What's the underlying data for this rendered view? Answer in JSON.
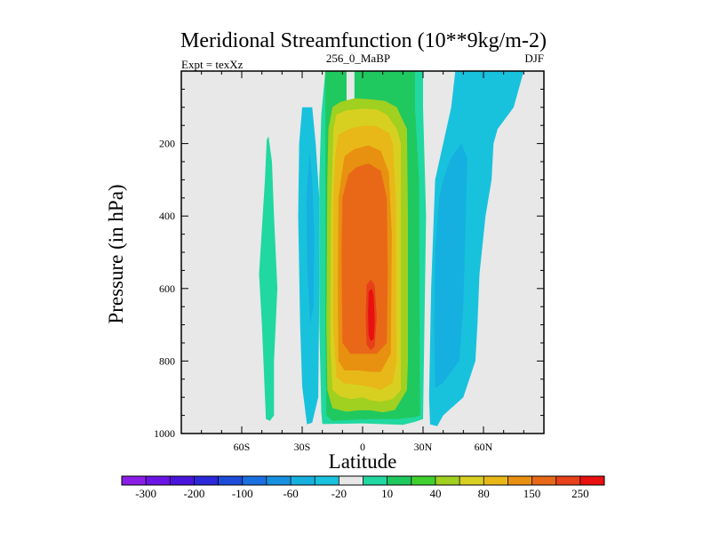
{
  "chart_data": {
    "type": "contour",
    "title": "Meridional Streamfunction (10**9kg/m-2)",
    "subtitle_left": "Expt = texXz",
    "subtitle_center": "256_0_MaBP",
    "subtitle_right": "DJF",
    "xlabel": "Latitude",
    "ylabel": "Pressure (in hPa)",
    "xlim": [
      -90,
      90
    ],
    "ylim": [
      1000,
      0
    ],
    "x_ticks": [
      {
        "value": -60,
        "label": "60S"
      },
      {
        "value": -30,
        "label": "30S"
      },
      {
        "value": 0,
        "label": "0"
      },
      {
        "value": 30,
        "label": "30N"
      },
      {
        "value": 60,
        "label": "60N"
      }
    ],
    "y_ticks": [
      {
        "value": 200,
        "label": "200"
      },
      {
        "value": 400,
        "label": "400"
      },
      {
        "value": 600,
        "label": "600"
      },
      {
        "value": 800,
        "label": "800"
      },
      {
        "value": 1000,
        "label": "1000"
      }
    ],
    "colorbar": {
      "colors": [
        "#8a1ee6",
        "#6a14e6",
        "#4a14dc",
        "#2a28d8",
        "#1c4cd8",
        "#1a70e0",
        "#1890e0",
        "#16b0e0",
        "#18c2dc",
        "#e8e8e8",
        "#20d8a0",
        "#20c860",
        "#40d030",
        "#a0d020",
        "#d8d020",
        "#e8b818",
        "#e89010",
        "#e86818",
        "#e84018",
        "#e81010"
      ],
      "labels": [
        {
          "after_index": 0,
          "text": "-300"
        },
        {
          "after_index": 2,
          "text": "-200"
        },
        {
          "after_index": 4,
          "text": "-100"
        },
        {
          "after_index": 6,
          "text": "-60"
        },
        {
          "after_index": 8,
          "text": "-20"
        },
        {
          "after_index": 10,
          "text": "10"
        },
        {
          "after_index": 12,
          "text": "40"
        },
        {
          "after_index": 14,
          "text": "80"
        },
        {
          "after_index": 16,
          "text": "150"
        },
        {
          "after_index": 18,
          "text": "250"
        }
      ]
    },
    "background_color": "#e8e8e8",
    "regions": [
      {
        "name": "sh-outer-cell",
        "level": "10",
        "color": "#20d8a0",
        "outline": [
          [
            -47.6,
            190
          ],
          [
            -46.7,
            180
          ],
          [
            -45,
            250
          ],
          [
            -44,
            400
          ],
          [
            -42.3,
            600
          ],
          [
            -44,
            800
          ],
          [
            -44,
            950
          ],
          [
            -46,
            965
          ],
          [
            -48,
            960
          ],
          [
            -50,
            700
          ],
          [
            -51.4,
            560
          ],
          [
            -48.5,
            300
          ]
        ]
      },
      {
        "name": "sh-ferrel-cell",
        "level": "-20",
        "color": "#18c2dc",
        "outline": [
          [
            -30,
            100
          ],
          [
            -25,
            100
          ],
          [
            -23.3,
            200
          ],
          [
            -21.5,
            350
          ],
          [
            -21.5,
            600
          ],
          [
            -22,
            900
          ],
          [
            -25,
            970
          ],
          [
            -27.6,
            975
          ],
          [
            -30,
            870
          ],
          [
            -31,
            700
          ],
          [
            -32,
            400
          ],
          [
            -31.5,
            200
          ]
        ]
      },
      {
        "name": "sh-ferrel-core",
        "level": "-60",
        "color": "#16b0e0",
        "outline": [
          [
            -26.3,
            220
          ],
          [
            -25,
            300
          ],
          [
            -24,
            450
          ],
          [
            -24.4,
            650
          ],
          [
            -26,
            700
          ],
          [
            -27.5,
            550
          ],
          [
            -28,
            350
          ]
        ]
      },
      {
        "name": "hadley-10",
        "level": "10",
        "color": "#20d8a0",
        "outline": [
          [
            -18.5,
            0
          ],
          [
            -8,
            0
          ],
          [
            -8,
            120
          ],
          [
            -4,
            120
          ],
          [
            -4,
            0
          ],
          [
            30,
            0
          ],
          [
            30,
            100
          ],
          [
            31.5,
            400
          ],
          [
            30,
            960
          ],
          [
            26,
            968
          ],
          [
            20,
            976
          ],
          [
            0,
            972
          ],
          [
            -20,
            974
          ],
          [
            -20.5,
            940
          ],
          [
            -21.5,
            700
          ],
          [
            -21.5,
            300
          ],
          [
            -20.5,
            120
          ]
        ]
      },
      {
        "name": "hadley-40",
        "level": "40",
        "color": "#20c860",
        "outline": [
          [
            -18.5,
            0
          ],
          [
            -8,
            0
          ],
          [
            -8,
            90
          ],
          [
            -4,
            90
          ],
          [
            -4,
            0
          ],
          [
            26,
            0
          ],
          [
            26,
            100
          ],
          [
            28,
            300
          ],
          [
            28.5,
            950
          ],
          [
            26,
            955
          ],
          [
            17,
            960
          ],
          [
            4,
            960
          ],
          [
            -4,
            962
          ],
          [
            -15,
            965
          ],
          [
            -18,
            950
          ],
          [
            -18.5,
            700
          ],
          [
            -18.5,
            300
          ]
        ]
      },
      {
        "name": "hadley-80",
        "level": "80",
        "color": "#a0d020",
        "outline": [
          [
            -15,
            100
          ],
          [
            -11,
            85
          ],
          [
            -4,
            75
          ],
          [
            4,
            78
          ],
          [
            11,
            82
          ],
          [
            17,
            100
          ],
          [
            22,
            160
          ],
          [
            22.5,
            400
          ],
          [
            22.5,
            800
          ],
          [
            22,
            880
          ],
          [
            16,
            935
          ],
          [
            10,
            942
          ],
          [
            4,
            936
          ],
          [
            -2,
            936
          ],
          [
            -8,
            940
          ],
          [
            -15,
            930
          ],
          [
            -17.5,
            880
          ],
          [
            -18,
            700
          ],
          [
            -17.5,
            300
          ],
          [
            -17,
            160
          ]
        ]
      },
      {
        "name": "hadley-150",
        "level": "150",
        "color": "#d8d020",
        "outline": [
          [
            -13,
            120
          ],
          [
            -8,
            108
          ],
          [
            0,
            104
          ],
          [
            7,
            106
          ],
          [
            12,
            120
          ],
          [
            17,
            160
          ],
          [
            19,
            200
          ],
          [
            19,
            880
          ],
          [
            15,
            905
          ],
          [
            9,
            912
          ],
          [
            4,
            908
          ],
          [
            0,
            900
          ],
          [
            -6,
            905
          ],
          [
            -11,
            898
          ],
          [
            -15,
            880
          ],
          [
            -16,
            750
          ],
          [
            -15.7,
            400
          ],
          [
            -15,
            250
          ],
          [
            -14.5,
            160
          ]
        ]
      },
      {
        "name": "hadley-200",
        "level": "200",
        "color": "#e8b818",
        "outline": [
          [
            -12,
            175
          ],
          [
            -6,
            158
          ],
          [
            1,
            150
          ],
          [
            7,
            152
          ],
          [
            13,
            170
          ],
          [
            15,
            200
          ],
          [
            16.5,
            350
          ],
          [
            16.8,
            800
          ],
          [
            15,
            860
          ],
          [
            9,
            880
          ],
          [
            4,
            872
          ],
          [
            -2,
            866
          ],
          [
            -9,
            862
          ],
          [
            -13,
            845
          ],
          [
            -14.6,
            700
          ],
          [
            -14.6,
            350
          ],
          [
            -13.5,
            230
          ]
        ]
      },
      {
        "name": "hadley-250",
        "level": "250",
        "color": "#e89010",
        "outline": [
          [
            -9,
            235
          ],
          [
            -4,
            215
          ],
          [
            3,
            205
          ],
          [
            9,
            220
          ],
          [
            13,
            280
          ],
          [
            14.5,
            450
          ],
          [
            14,
            780
          ],
          [
            9,
            830
          ],
          [
            4,
            830
          ],
          [
            -2,
            826
          ],
          [
            -9,
            826
          ],
          [
            -12,
            800
          ],
          [
            -12.3,
            600
          ],
          [
            -12,
            350
          ]
        ]
      },
      {
        "name": "hadley-300",
        "level": "300",
        "color": "#e86818",
        "outline": [
          [
            -7,
            285
          ],
          [
            -3,
            265
          ],
          [
            3,
            255
          ],
          [
            9,
            275
          ],
          [
            12,
            350
          ],
          [
            12.5,
            550
          ],
          [
            12,
            750
          ],
          [
            7,
            780
          ],
          [
            0,
            780
          ],
          [
            -6,
            780
          ],
          [
            -10,
            750
          ],
          [
            -10.5,
            500
          ],
          [
            -10,
            350
          ]
        ]
      },
      {
        "name": "hadley-350",
        "level": "350",
        "color": "#e84018",
        "outline": [
          [
            2,
            590
          ],
          [
            4,
            575
          ],
          [
            6,
            590
          ],
          [
            7,
            680
          ],
          [
            6,
            760
          ],
          [
            4,
            770
          ],
          [
            2,
            755
          ],
          [
            1.5,
            680
          ]
        ]
      },
      {
        "name": "hadley-core",
        "level": "400",
        "color": "#e81010",
        "outline": [
          [
            3,
            610
          ],
          [
            4.5,
            600
          ],
          [
            5.5,
            620
          ],
          [
            6,
            690
          ],
          [
            5.5,
            740
          ],
          [
            4,
            745
          ],
          [
            3,
            730
          ],
          [
            2.7,
            670
          ]
        ]
      },
      {
        "name": "nh-ferrel-cell",
        "level": "-20",
        "color": "#18c2dc",
        "outline": [
          [
            48,
            0
          ],
          [
            80,
            0
          ],
          [
            75,
            100
          ],
          [
            67,
            160
          ],
          [
            65,
            200
          ],
          [
            64,
            300
          ],
          [
            61,
            400
          ],
          [
            58,
            560
          ],
          [
            57,
            700
          ],
          [
            56,
            800
          ],
          [
            50,
            900
          ],
          [
            40,
            950
          ],
          [
            37,
            980
          ],
          [
            33.5,
            975
          ],
          [
            33,
            900
          ],
          [
            34,
            600
          ],
          [
            36,
            300
          ],
          [
            44,
            100
          ],
          [
            46,
            0
          ]
        ]
      },
      {
        "name": "nh-ferrel-core",
        "level": "-60",
        "color": "#16b0e0",
        "outline": [
          [
            45,
            230
          ],
          [
            49,
            200
          ],
          [
            52,
            240
          ],
          [
            51,
            450
          ],
          [
            50,
            650
          ],
          [
            48,
            800
          ],
          [
            44,
            830
          ],
          [
            40,
            860
          ],
          [
            36,
            875
          ],
          [
            35.5,
            700
          ],
          [
            36,
            500
          ],
          [
            38,
            350
          ],
          [
            40,
            300
          ],
          [
            43,
            250
          ]
        ]
      }
    ]
  }
}
